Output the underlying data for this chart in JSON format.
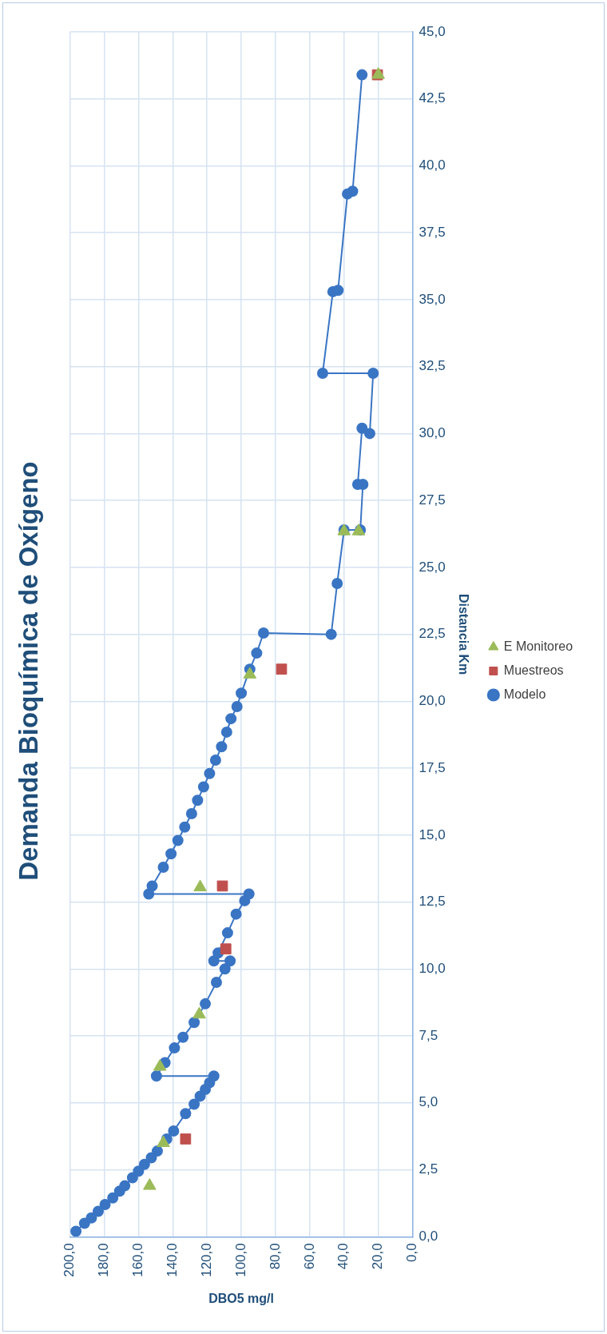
{
  "chart_data": {
    "type": "scatter",
    "title": "Demanda Bioquímica de Oxígeno",
    "xlabel": "DBO5 mg/l",
    "ylabel": "Distancia Km",
    "xlim": [
      200,
      0
    ],
    "ylim": [
      0,
      45
    ],
    "yticks": [
      {
        "value": 0,
        "label": "0,0"
      },
      {
        "value": 2.5,
        "label": "2,5"
      },
      {
        "value": 5,
        "label": "5,0"
      },
      {
        "value": 7.5,
        "label": "7,5"
      },
      {
        "value": 10,
        "label": "10,0"
      },
      {
        "value": 12.5,
        "label": "12,5"
      },
      {
        "value": 15,
        "label": "15,0"
      },
      {
        "value": 17.5,
        "label": "17,5"
      },
      {
        "value": 20,
        "label": "20,0"
      },
      {
        "value": 22.5,
        "label": "22,5"
      },
      {
        "value": 25,
        "label": "25,0"
      },
      {
        "value": 27.5,
        "label": "27,5"
      },
      {
        "value": 30,
        "label": "30,0"
      },
      {
        "value": 32.5,
        "label": "32,5"
      },
      {
        "value": 35,
        "label": "35,0"
      },
      {
        "value": 37.5,
        "label": "37,5"
      },
      {
        "value": 40,
        "label": "40,0"
      },
      {
        "value": 42.5,
        "label": "42,5"
      },
      {
        "value": 45,
        "label": "45,0"
      }
    ],
    "xticks": [
      {
        "value": 200,
        "label": "200,0"
      },
      {
        "value": 180,
        "label": "180,0"
      },
      {
        "value": 160,
        "label": "160,0"
      },
      {
        "value": 140,
        "label": "140,0"
      },
      {
        "value": 120,
        "label": "120,0"
      },
      {
        "value": 100,
        "label": "100,0"
      },
      {
        "value": 80,
        "label": "80,0"
      },
      {
        "value": 60,
        "label": "60,0"
      },
      {
        "value": 40,
        "label": "40,0"
      },
      {
        "value": 20,
        "label": "20,0"
      },
      {
        "value": 0,
        "label": "0,0"
      }
    ],
    "grid": true,
    "legend": "right",
    "series": [
      {
        "name": "Modelo",
        "type": "line",
        "color": "#3a75c4",
        "marker": "circle",
        "line_style": "solid",
        "values": [
          0.2,
          0.5,
          0.7,
          0.95,
          1.2,
          1.45,
          1.7,
          1.9,
          2.2,
          2.45,
          2.7,
          2.95,
          3.2,
          3.65,
          3.95,
          4.6,
          4.95,
          5.25,
          5.5,
          5.75,
          6.0,
          6.0,
          6.5,
          7.05,
          7.45,
          8.0,
          8.7,
          9.5,
          10.0,
          10.3,
          10.3,
          10.6,
          11.35,
          12.05,
          12.55,
          12.8,
          12.8,
          13.1,
          13.8,
          14.3,
          14.8,
          15.3,
          15.8,
          16.3,
          16.8,
          17.3,
          17.8,
          18.3,
          18.85,
          19.35,
          19.8,
          20.3,
          21.2,
          21.8,
          22.55,
          22.5,
          24.4,
          26.4,
          26.4,
          28.1,
          28.1,
          30.2,
          30.0,
          32.25,
          32.25,
          35.3,
          35.35,
          38.95,
          39.05,
          43.4
        ],
        "x": [
          196.5,
          191.5,
          187.5,
          183.5,
          179.5,
          175,
          171,
          168,
          163.5,
          160,
          156.5,
          152.5,
          149,
          143.5,
          139.5,
          132.5,
          127.5,
          124,
          121,
          118.5,
          116,
          149.5,
          144.5,
          139,
          134,
          127.5,
          121,
          114.5,
          109.5,
          106.5,
          116,
          113.5,
          108,
          103,
          98,
          95.5,
          154,
          152,
          145.5,
          141,
          137,
          133,
          129,
          125.5,
          122,
          118.5,
          115,
          111.5,
          108.5,
          106,
          102.5,
          100,
          95,
          91,
          87,
          47.5,
          44,
          40,
          30.5,
          29,
          32,
          29.5,
          25,
          23,
          52.5,
          46.5,
          43.5,
          38,
          35,
          29.5
        ]
      },
      {
        "name": "Muestreos",
        "type": "scatter",
        "color": "#c0504d",
        "marker": "square",
        "values": [
          3.65,
          10.75,
          13.1,
          21.2,
          43.4
        ],
        "x": [
          132.5,
          109,
          111,
          76.5,
          20.5
        ]
      },
      {
        "name": "E Monitoreo",
        "type": "scatter",
        "color": "#9bbb59",
        "marker": "triangle",
        "values": [
          1.9,
          3.5,
          6.35,
          8.3,
          13.05,
          21.0,
          26.35,
          26.35,
          43.4
        ],
        "x": [
          153.5,
          145.5,
          147.5,
          124.5,
          124,
          95,
          40,
          31.5,
          20
        ]
      }
    ]
  }
}
